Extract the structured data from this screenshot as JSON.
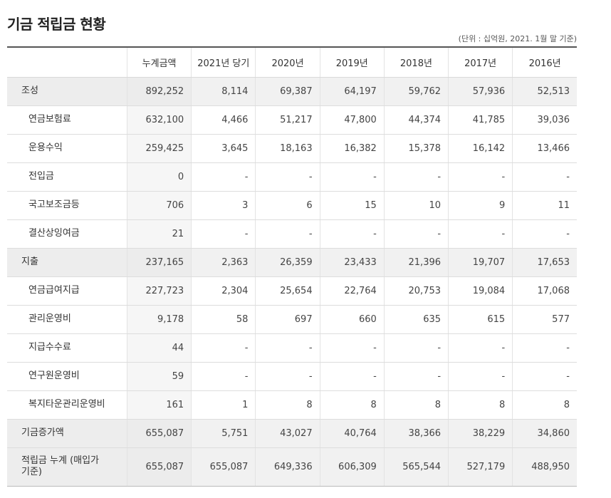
{
  "page": {
    "title": "기금 적립금 현황",
    "unit": "(단위 : 십억원, 2021. 1월 말 기준)"
  },
  "table": {
    "headers": [
      "누계금액",
      "2021년 당기",
      "2020년",
      "2019년",
      "2018년",
      "2017년",
      "2016년"
    ],
    "rows": [
      {
        "label": "조성",
        "group": true,
        "values": [
          "892,252",
          "8,114",
          "69,387",
          "64,197",
          "59,762",
          "57,936",
          "52,513"
        ]
      },
      {
        "label": "연금보험료",
        "group": false,
        "values": [
          "632,100",
          "4,466",
          "51,217",
          "47,800",
          "44,374",
          "41,785",
          "39,036"
        ]
      },
      {
        "label": "운용수익",
        "group": false,
        "values": [
          "259,425",
          "3,645",
          "18,163",
          "16,382",
          "15,378",
          "16,142",
          "13,466"
        ]
      },
      {
        "label": "전입금",
        "group": false,
        "values": [
          "0",
          "-",
          "-",
          "-",
          "-",
          "-",
          "-"
        ]
      },
      {
        "label": "국고보조금등",
        "group": false,
        "values": [
          "706",
          "3",
          "6",
          "15",
          "10",
          "9",
          "11"
        ]
      },
      {
        "label": "결산상잉여금",
        "group": false,
        "values": [
          "21",
          "-",
          "-",
          "-",
          "-",
          "-",
          "-"
        ]
      },
      {
        "label": "지출",
        "group": true,
        "values": [
          "237,165",
          "2,363",
          "26,359",
          "23,433",
          "21,396",
          "19,707",
          "17,653"
        ]
      },
      {
        "label": "연금급여지급",
        "group": false,
        "values": [
          "227,723",
          "2,304",
          "25,654",
          "22,764",
          "20,753",
          "19,084",
          "17,068"
        ]
      },
      {
        "label": "관리운영비",
        "group": false,
        "values": [
          "9,178",
          "58",
          "697",
          "660",
          "635",
          "615",
          "577"
        ]
      },
      {
        "label": "지급수수료",
        "group": false,
        "values": [
          "44",
          "-",
          "-",
          "-",
          "-",
          "-",
          "-"
        ]
      },
      {
        "label": "연구원운영비",
        "group": false,
        "values": [
          "59",
          "-",
          "-",
          "-",
          "-",
          "-",
          "-"
        ]
      },
      {
        "label": "복지타운관리운영비",
        "group": false,
        "values": [
          "161",
          "1",
          "8",
          "8",
          "8",
          "8",
          "8"
        ]
      },
      {
        "label": "기금증가액",
        "group": true,
        "values": [
          "655,087",
          "5,751",
          "43,027",
          "40,764",
          "38,366",
          "38,229",
          "34,860"
        ]
      },
      {
        "label": "적립금 누계 (매입가 기준)",
        "group": true,
        "final": true,
        "values": [
          "655,087",
          "655,087",
          "649,336",
          "606,309",
          "565,544",
          "527,179",
          "488,950"
        ]
      }
    ]
  }
}
